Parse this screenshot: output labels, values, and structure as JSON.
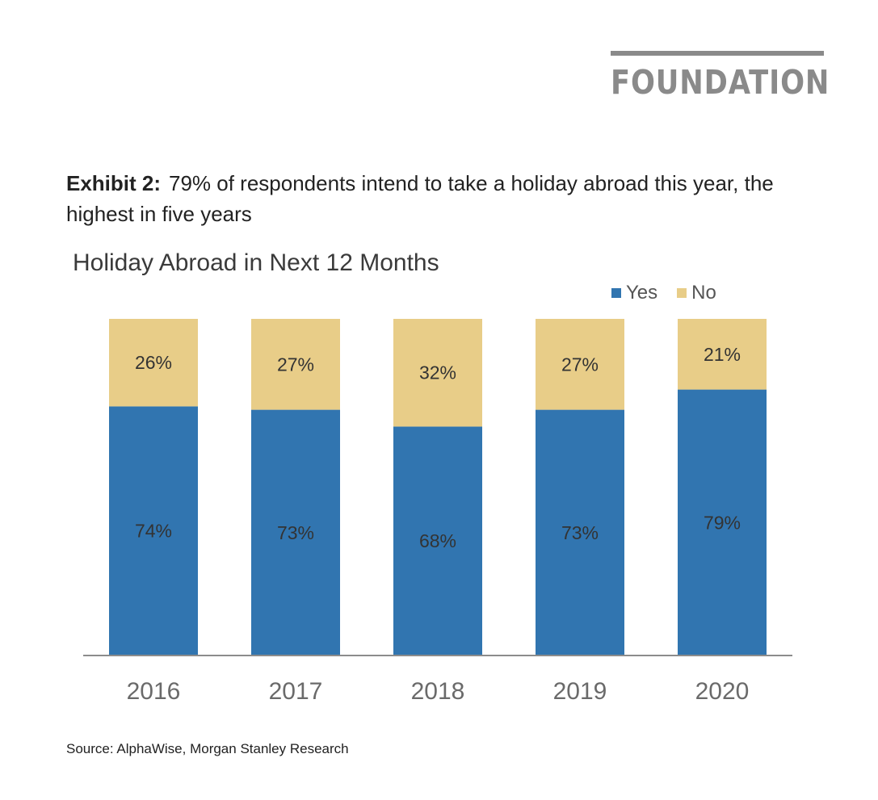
{
  "logo": {
    "text": "FOUNDATION"
  },
  "exhibit": {
    "label": "Exhibit 2:",
    "text": "79% of respondents intend to take a holiday abroad this year, the highest in five years"
  },
  "source": "Source: AlphaWise, Morgan Stanley Research",
  "colors": {
    "yes": "#3175b0",
    "no": "#e8cd88",
    "axis": "#8c8c8c",
    "tick_text": "#6a6a6a"
  },
  "chart_data": {
    "type": "bar",
    "stacked": true,
    "title": "Holiday Abroad in Next 12 Months",
    "categories": [
      "2016",
      "2017",
      "2018",
      "2019",
      "2020"
    ],
    "series": [
      {
        "name": "Yes",
        "values": [
          74,
          73,
          68,
          73,
          79
        ],
        "labels": [
          "74%",
          "73%",
          "68%",
          "73%",
          "79%"
        ]
      },
      {
        "name": "No",
        "values": [
          26,
          27,
          32,
          27,
          21
        ],
        "labels": [
          "26%",
          "27%",
          "32%",
          "27%",
          "21%"
        ]
      }
    ],
    "ylim": [
      0,
      100
    ],
    "xlabel": "",
    "ylabel": "",
    "legend_position": "top-right"
  }
}
